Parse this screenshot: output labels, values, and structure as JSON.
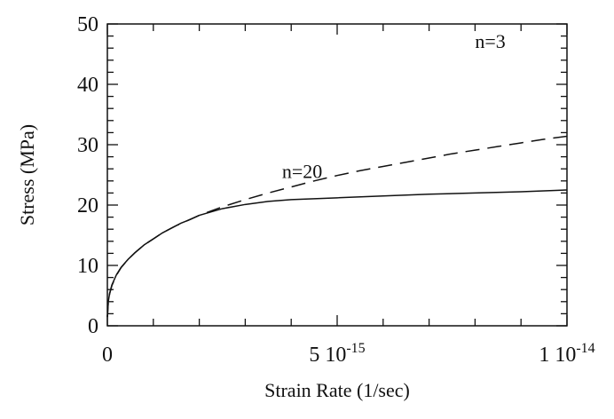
{
  "chart_data": {
    "type": "line",
    "title": "",
    "xlabel": "Strain Rate (1/sec)",
    "ylabel": "Stress (MPa)",
    "xlim": [
      0,
      1e-14
    ],
    "ylim": [
      0,
      50
    ],
    "grid": false,
    "x_ticks": [
      {
        "value": 0,
        "label": "0"
      },
      {
        "value": 5e-15,
        "label": "5 10",
        "exponent": "-15"
      },
      {
        "value": 1e-14,
        "label": "1 10",
        "exponent": "-14"
      }
    ],
    "y_ticks": [
      {
        "value": 0,
        "label": "0"
      },
      {
        "value": 10,
        "label": "10"
      },
      {
        "value": 20,
        "label": "20"
      },
      {
        "value": 30,
        "label": "30"
      },
      {
        "value": 40,
        "label": "40"
      },
      {
        "value": 50,
        "label": "50"
      }
    ],
    "series": [
      {
        "name": "n=3",
        "style": "dashed",
        "label_at": {
          "x": 8e-15,
          "y": 46.0
        },
        "points": [
          [
            1e-18,
            1.44
          ],
          [
            2e-17,
            3.9
          ],
          [
            5e-17,
            5.3
          ],
          [
            1e-16,
            6.7
          ],
          [
            2e-16,
            8.4
          ],
          [
            3e-16,
            9.65
          ],
          [
            4.5e-16,
            11.0
          ],
          [
            6e-16,
            12.1
          ],
          [
            8e-16,
            13.4
          ],
          [
            1e-15,
            14.4
          ],
          [
            1.2e-15,
            15.4
          ],
          [
            1.5e-15,
            16.6
          ],
          [
            2e-15,
            18.3
          ],
          [
            2.5e-15,
            19.7
          ],
          [
            3e-15,
            20.9
          ],
          [
            3.5e-15,
            22.0
          ],
          [
            4e-15,
            23.0
          ],
          [
            4.5e-15,
            24.0
          ],
          [
            5e-15,
            24.9
          ],
          [
            5.5e-15,
            25.7
          ],
          [
            6e-15,
            26.4
          ],
          [
            6.5e-15,
            27.1
          ],
          [
            7e-15,
            27.8
          ],
          [
            7.5e-15,
            28.5
          ],
          [
            8e-15,
            29.1
          ],
          [
            8.5e-15,
            29.7
          ],
          [
            9e-15,
            30.3
          ],
          [
            9.5e-15,
            30.9
          ],
          [
            1e-14,
            31.4
          ]
        ]
      },
      {
        "name": "n=20",
        "style": "solid",
        "label_at": {
          "x": 3.8e-15,
          "y": 24.5
        },
        "points": [
          [
            1e-18,
            1.5
          ],
          [
            2e-17,
            4.0
          ],
          [
            5e-17,
            5.4
          ],
          [
            1e-16,
            6.8
          ],
          [
            2e-16,
            8.5
          ],
          [
            3e-16,
            9.7
          ],
          [
            4.5e-16,
            11.0
          ],
          [
            6e-16,
            12.1
          ],
          [
            8e-16,
            13.4
          ],
          [
            1e-15,
            14.4
          ],
          [
            1.2e-15,
            15.4
          ],
          [
            1.4e-15,
            16.2
          ],
          [
            1.6e-15,
            17.0
          ],
          [
            1.8e-15,
            17.6
          ],
          [
            2e-15,
            18.3
          ],
          [
            2.5e-15,
            19.4
          ],
          [
            3e-15,
            20.1
          ],
          [
            3.5e-15,
            20.6
          ],
          [
            4e-15,
            20.9
          ],
          [
            5e-15,
            21.2
          ],
          [
            6e-15,
            21.5
          ],
          [
            7e-15,
            21.8
          ],
          [
            8e-15,
            22.0
          ],
          [
            9e-15,
            22.2
          ],
          [
            1e-14,
            22.5
          ]
        ]
      }
    ]
  }
}
